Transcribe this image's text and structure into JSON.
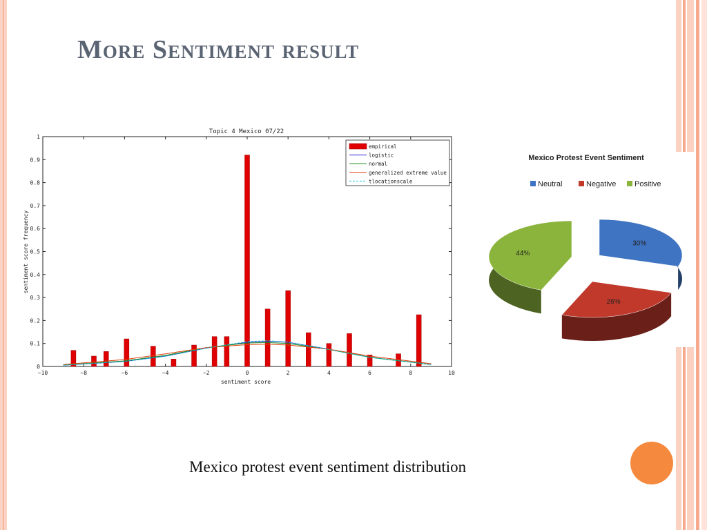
{
  "slide": {
    "title": "More Sentiment result",
    "caption": "Mexico protest event sentiment distribution"
  },
  "chart_data": [
    {
      "type": "bar",
      "title": "Topic 4 Mexico 07/22",
      "xlabel": "sentiment score",
      "ylabel": "sentiment score frequency",
      "xlim": [
        -10,
        10
      ],
      "ylim": [
        0,
        1
      ],
      "xticks": [
        "-10",
        "-8",
        "-6",
        "-4",
        "-2",
        "0",
        "2",
        "4",
        "6",
        "8",
        "10"
      ],
      "yticks": [
        "0",
        "0.1",
        "0.2",
        "0.3",
        "0.4",
        "0.5",
        "0.6",
        "0.7",
        "0.8",
        "0.9",
        "1"
      ],
      "legend_position": "top-right",
      "colors": {
        "empirical": "#e00000",
        "logistic": "#2a2ad0",
        "normal": "#1a8a1a",
        "generalized extreme value": "#e04010",
        "tlocationscale": "#10c8d8"
      },
      "bars": {
        "name": "empirical",
        "x": [
          -8.5,
          -7.5,
          -6.9,
          -5.9,
          -4.6,
          -3.6,
          -2.6,
          -1.6,
          -1.0,
          0.0,
          1.0,
          2.0,
          3.0,
          4.0,
          5.0,
          6.0,
          7.4,
          8.4
        ],
        "values": [
          0.07,
          0.045,
          0.065,
          0.12,
          0.088,
          0.032,
          0.093,
          0.13,
          0.13,
          0.92,
          0.25,
          0.33,
          0.147,
          0.1,
          0.143,
          0.05,
          0.055,
          0.225
        ]
      },
      "fits": [
        {
          "name": "logistic",
          "x": [
            -9,
            -6,
            -4,
            -2,
            0,
            1,
            2,
            4,
            6,
            9
          ],
          "values": [
            0.005,
            0.022,
            0.045,
            0.08,
            0.105,
            0.11,
            0.105,
            0.075,
            0.04,
            0.008
          ]
        },
        {
          "name": "normal",
          "x": [
            -9,
            -6,
            -4,
            -2,
            0,
            1,
            2,
            4,
            6,
            9
          ],
          "values": [
            0.006,
            0.024,
            0.048,
            0.082,
            0.102,
            0.104,
            0.1,
            0.074,
            0.04,
            0.008
          ]
        },
        {
          "name": "generalized extreme value",
          "x": [
            -9,
            -6,
            -4,
            -2,
            0,
            1,
            2,
            4,
            6,
            9
          ],
          "values": [
            0.008,
            0.03,
            0.055,
            0.082,
            0.095,
            0.097,
            0.093,
            0.075,
            0.045,
            0.012
          ]
        },
        {
          "name": "tlocationscale",
          "x": [
            -9,
            -6,
            -4,
            -2,
            0,
            1,
            2,
            4,
            6,
            9
          ],
          "values": [
            0.005,
            0.022,
            0.044,
            0.08,
            0.108,
            0.112,
            0.106,
            0.074,
            0.039,
            0.008
          ]
        }
      ]
    },
    {
      "type": "pie",
      "title": "Mexico Protest Event Sentiment",
      "legend_position": "top",
      "slices": [
        {
          "label": "Neutral",
          "value": 30,
          "value_label": "30%",
          "color": "#3f74c2"
        },
        {
          "label": "Negative",
          "value": 26,
          "value_label": "26%",
          "color": "#c0392b"
        },
        {
          "label": "Positive",
          "value": 44,
          "value_label": "44%",
          "color": "#8bb43c"
        }
      ]
    }
  ]
}
